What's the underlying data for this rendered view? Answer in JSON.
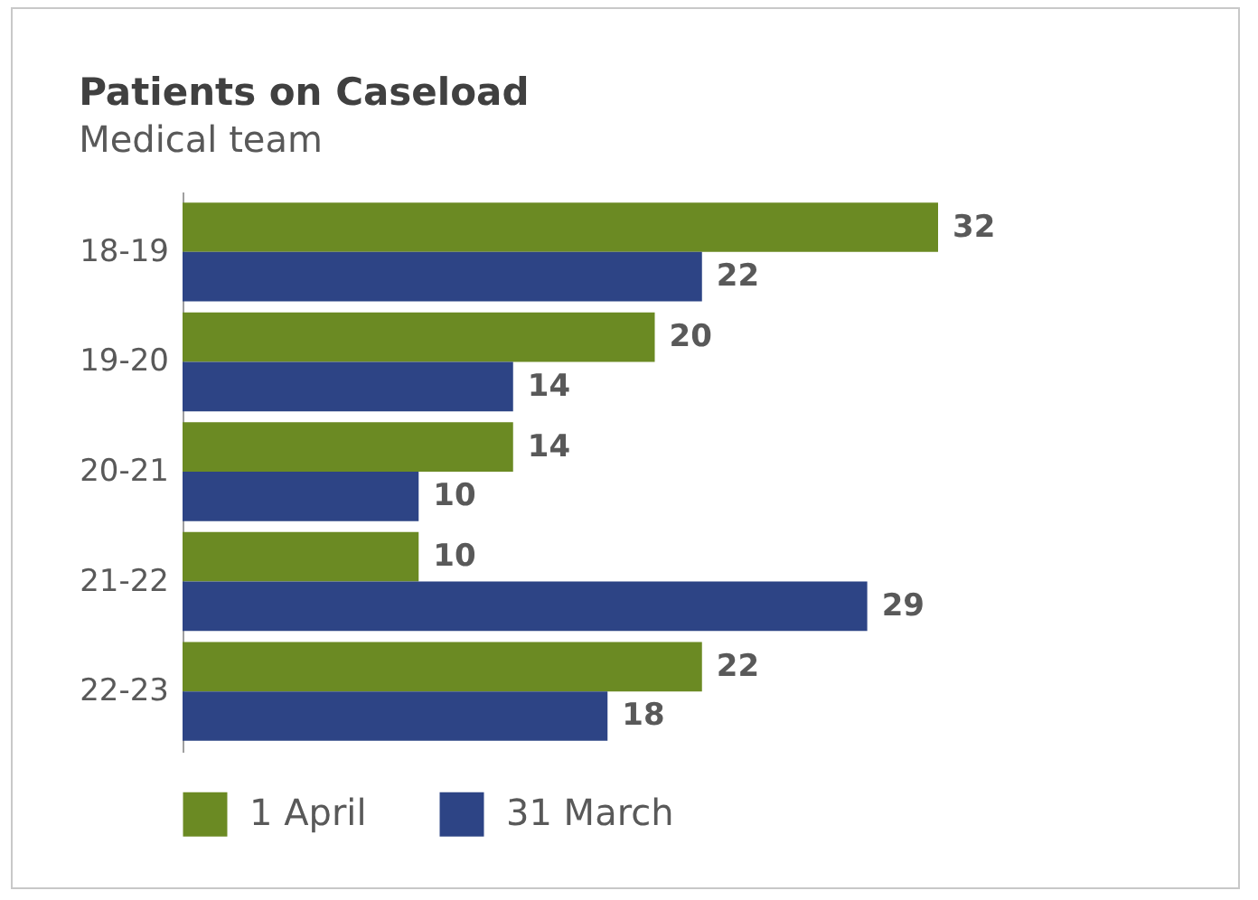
{
  "chart_data": {
    "type": "bar",
    "orientation": "horizontal",
    "title": "Patients on Caseload",
    "subtitle": "Medical team",
    "categories": [
      "18-19",
      "19-20",
      "20-21",
      "21-22",
      "22-23"
    ],
    "series": [
      {
        "name": "1 April",
        "color": "#6b8a23",
        "values": [
          32,
          20,
          14,
          10,
          22
        ]
      },
      {
        "name": "31 March",
        "color": "#2d4485",
        "values": [
          22,
          14,
          10,
          29,
          18
        ]
      }
    ],
    "data_labels": true,
    "legend": "bottom",
    "tick_labels": "y"
  }
}
